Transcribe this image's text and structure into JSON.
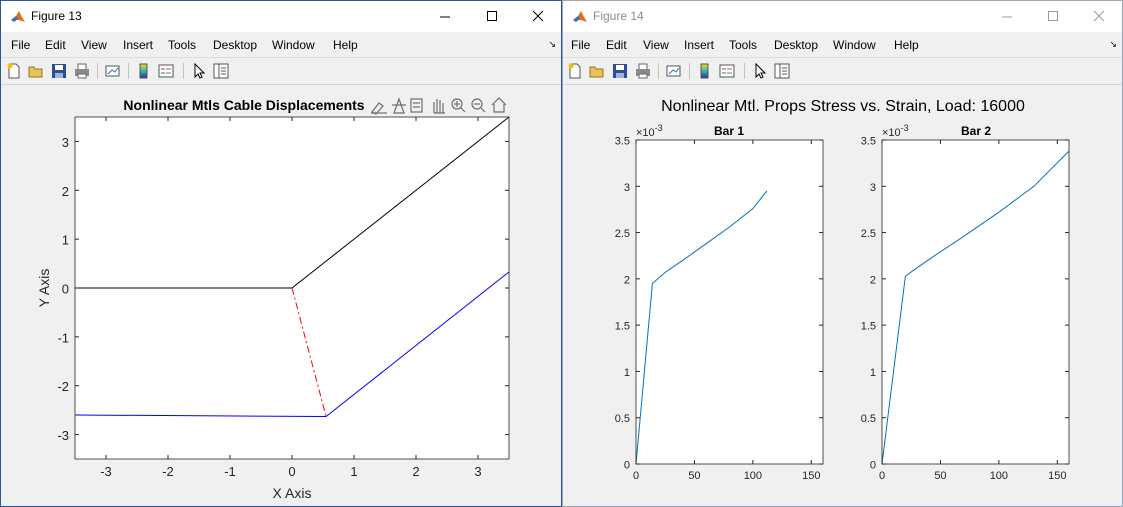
{
  "windows": [
    {
      "title": "Figure 13",
      "menu": [
        "File",
        "Edit",
        "View",
        "Insert",
        "Tools",
        "Desktop",
        "Window",
        "Help"
      ],
      "toolbar_icons": [
        "new-figure-icon",
        "open-file-icon",
        "save-icon",
        "print-icon",
        "link-plot-icon",
        "insert-colorbar-icon",
        "insert-legend-icon",
        "edit-plot-icon",
        "property-inspector-icon"
      ]
    },
    {
      "title": "Figure 14",
      "menu": [
        "File",
        "Edit",
        "View",
        "Insert",
        "Tools",
        "Desktop",
        "Window",
        "Help"
      ],
      "toolbar_icons": [
        "new-figure-icon",
        "open-file-icon",
        "save-icon",
        "print-icon",
        "link-plot-icon",
        "insert-colorbar-icon",
        "insert-legend-icon",
        "edit-plot-icon",
        "property-inspector-icon"
      ]
    }
  ],
  "axes_toolbar_icons": [
    "brush-icon",
    "data-cursor-icon",
    "export-icon",
    "pan-icon",
    "zoom-in-icon",
    "zoom-out-icon",
    "home-icon"
  ],
  "chart_data": [
    {
      "type": "line",
      "title": "Nonlinear Mtls Cable Displacements",
      "xlabel": "X Axis",
      "ylabel": "Y Axis",
      "xlim": [
        -3.5,
        3.5
      ],
      "ylim": [
        -3.5,
        3.5
      ],
      "xticks": [
        -3,
        -2,
        -1,
        0,
        1,
        2,
        3
      ],
      "yticks": [
        -3,
        -2,
        -1,
        0,
        1,
        2,
        3
      ],
      "grid": false,
      "series": [
        {
          "color": "#000000",
          "style": "solid",
          "x": [
            -3.5,
            0,
            3.5
          ],
          "y": [
            0,
            0,
            3.5
          ]
        },
        {
          "color": "#0000ff",
          "style": "solid",
          "x": [
            -3.5,
            0.55,
            3.5
          ],
          "y": [
            -2.6,
            -2.63,
            0.33
          ]
        },
        {
          "color": "#ff0000",
          "style": "dashdot",
          "x": [
            0,
            0.55
          ],
          "y": [
            0,
            -2.63
          ]
        }
      ]
    },
    {
      "type": "line",
      "suptitle": "Nonlinear Mtl. Props Stress vs. Strain, Load: 16000",
      "title": "Bar 1",
      "exponent_label": "×10",
      "exponent": "-3",
      "xlim": [
        0,
        160
      ],
      "ylim": [
        0,
        3.5
      ],
      "xticks": [
        0,
        50,
        100,
        150
      ],
      "yticks": [
        0,
        0.5,
        1,
        1.5,
        2,
        2.5,
        3,
        3.5
      ],
      "series": [
        {
          "color": "#0072bd",
          "x": [
            0,
            14,
            25,
            40,
            60,
            80,
            100,
            112
          ],
          "y": [
            0,
            1.95,
            2.07,
            2.2,
            2.38,
            2.56,
            2.76,
            2.95
          ]
        }
      ]
    },
    {
      "type": "line",
      "title": "Bar 2",
      "exponent_label": "×10",
      "exponent": "-3",
      "xlim": [
        0,
        160
      ],
      "ylim": [
        0,
        3.5
      ],
      "xticks": [
        0,
        50,
        100,
        150
      ],
      "yticks": [
        0,
        0.5,
        1,
        1.5,
        2,
        2.5,
        3,
        3.5
      ],
      "series": [
        {
          "color": "#0072bd",
          "x": [
            0,
            20,
            30,
            45,
            70,
            100,
            130,
            160
          ],
          "y": [
            0,
            2.03,
            2.12,
            2.25,
            2.46,
            2.72,
            3.0,
            3.38
          ]
        }
      ]
    }
  ]
}
